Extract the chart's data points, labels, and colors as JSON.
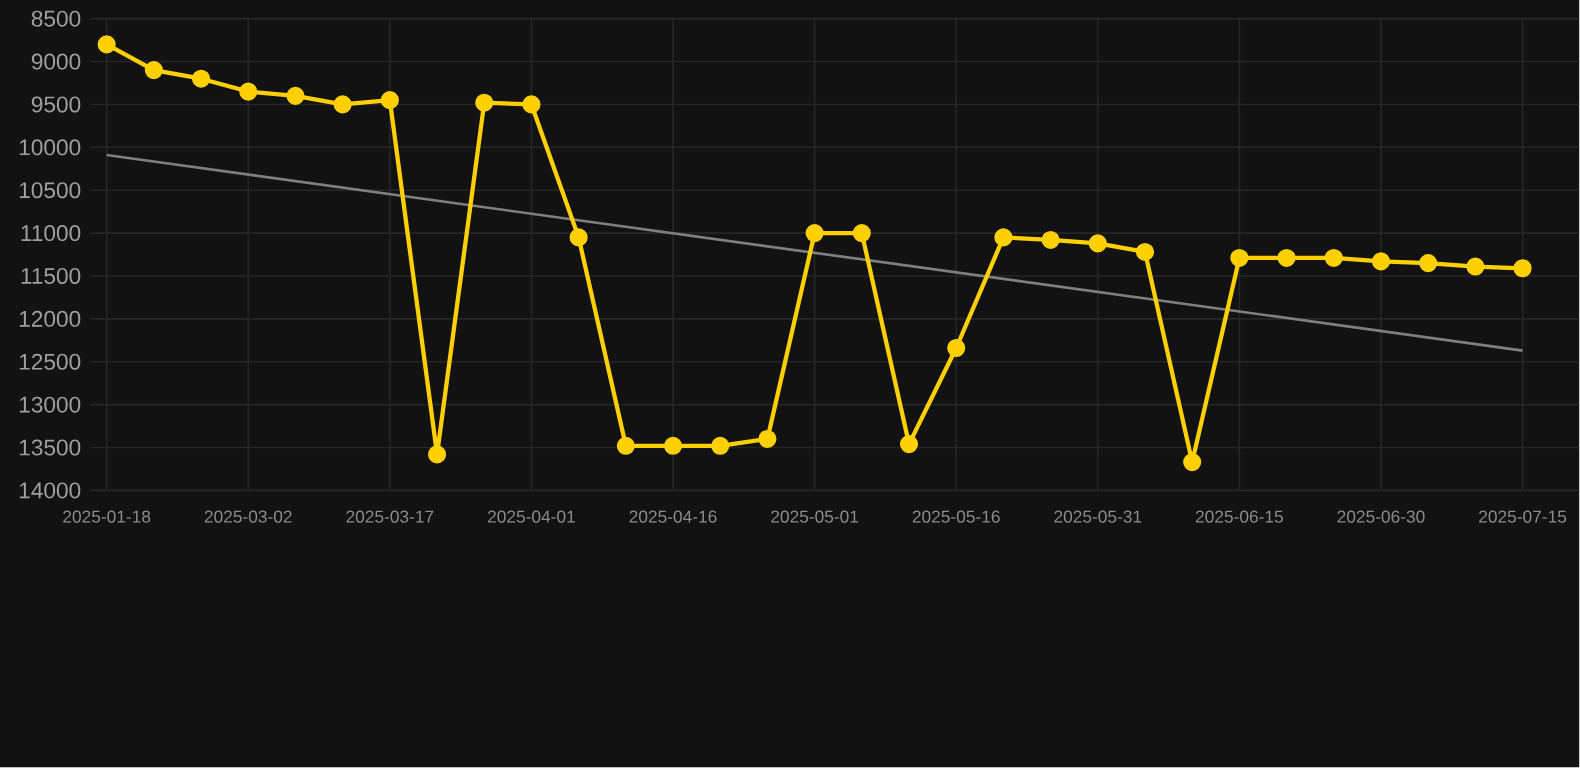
{
  "chart_data": {
    "type": "line",
    "categories": [
      "2025-01-18",
      null,
      null,
      "2025-03-02",
      null,
      null,
      "2025-03-17",
      null,
      null,
      "2025-04-01",
      null,
      null,
      "2025-04-16",
      null,
      null,
      "2025-05-01",
      null,
      null,
      "2025-05-16",
      null,
      null,
      "2025-05-31",
      null,
      null,
      "2025-06-15",
      null,
      null,
      "2025-06-30",
      null,
      null,
      "2025-07-15"
    ],
    "series": [
      {
        "color": "#ffd000",
        "marker": "circle",
        "values": [
          8800,
          9100,
          9200,
          9350,
          9400,
          9500,
          9450,
          13580,
          9480,
          9500,
          11050,
          13480,
          13480,
          13480,
          13400,
          11000,
          11000,
          13460,
          12340,
          11050,
          11080,
          11120,
          11220,
          13670,
          11290,
          11290,
          11290,
          11330,
          11350,
          11390,
          11410
        ]
      },
      {
        "color": "#7f7f7f",
        "marker": "none",
        "values": [
          10090,
          null,
          null,
          null,
          null,
          null,
          null,
          null,
          null,
          null,
          null,
          null,
          null,
          null,
          null,
          null,
          null,
          null,
          null,
          null,
          null,
          null,
          null,
          null,
          null,
          null,
          null,
          null,
          null,
          null,
          12370
        ]
      }
    ],
    "ylim": [
      14000,
      8500
    ],
    "yticks": [
      8500,
      9000,
      9500,
      10000,
      10500,
      11000,
      11500,
      12000,
      12500,
      13000,
      13500,
      14000
    ],
    "grid": true,
    "line_style": "solid"
  }
}
